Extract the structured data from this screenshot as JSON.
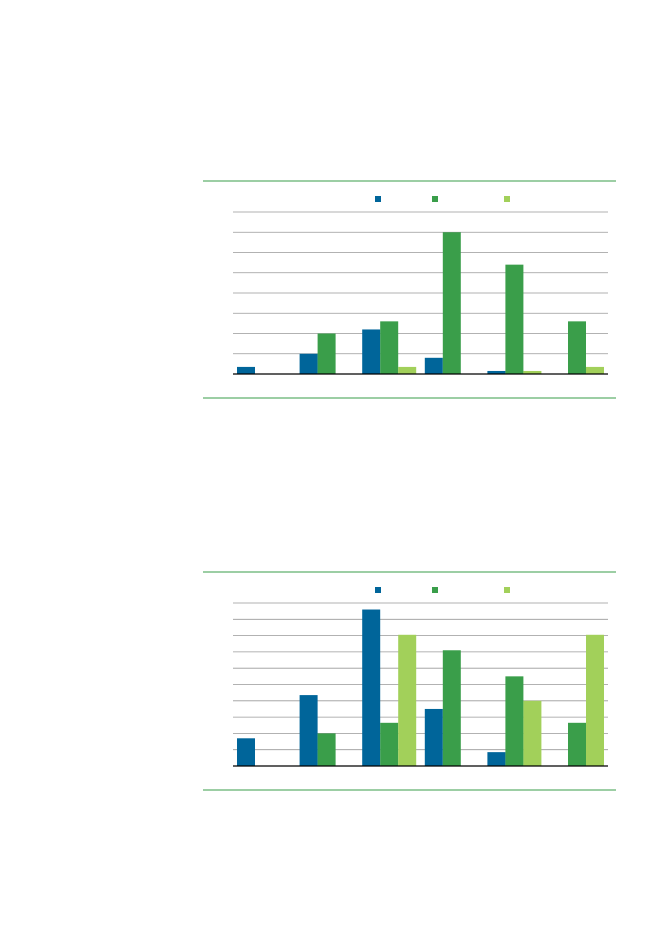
{
  "chart_data": [
    {
      "type": "bar",
      "categories": [
        null,
        null,
        null,
        null,
        null,
        null
      ],
      "series": [
        {
          "color": "#00659a",
          "values": [
            0.35,
            1.0,
            2.2,
            0.8,
            0.15,
            null
          ]
        },
        {
          "color": "#3a9e4a",
          "values": [
            null,
            2.0,
            2.6,
            7.0,
            5.4,
            2.6
          ]
        },
        {
          "color": "#a2d05a",
          "values": [
            null,
            null,
            0.35,
            null,
            0.15,
            0.35
          ]
        }
      ],
      "ylim": [
        0,
        8
      ],
      "yticks": [
        0,
        1,
        2,
        3,
        4,
        5,
        6,
        7,
        8
      ],
      "grid": true,
      "legend": "top"
    },
    {
      "type": "bar",
      "categories": [
        null,
        null,
        null,
        null,
        null,
        null
      ],
      "series": [
        {
          "color": "#00659a",
          "values": [
            1.7,
            4.35,
            9.6,
            3.5,
            0.85,
            null
          ]
        },
        {
          "color": "#3a9e4a",
          "values": [
            null,
            2.0,
            2.65,
            7.1,
            5.5,
            2.65
          ]
        },
        {
          "color": "#a2d05a",
          "values": [
            null,
            null,
            8.05,
            null,
            4.0,
            8.05
          ]
        }
      ],
      "ylim": [
        0,
        10
      ],
      "yticks": [
        0,
        1,
        2,
        3,
        4,
        5,
        6,
        7,
        8,
        9,
        10
      ],
      "grid": true,
      "legend": "top"
    }
  ]
}
